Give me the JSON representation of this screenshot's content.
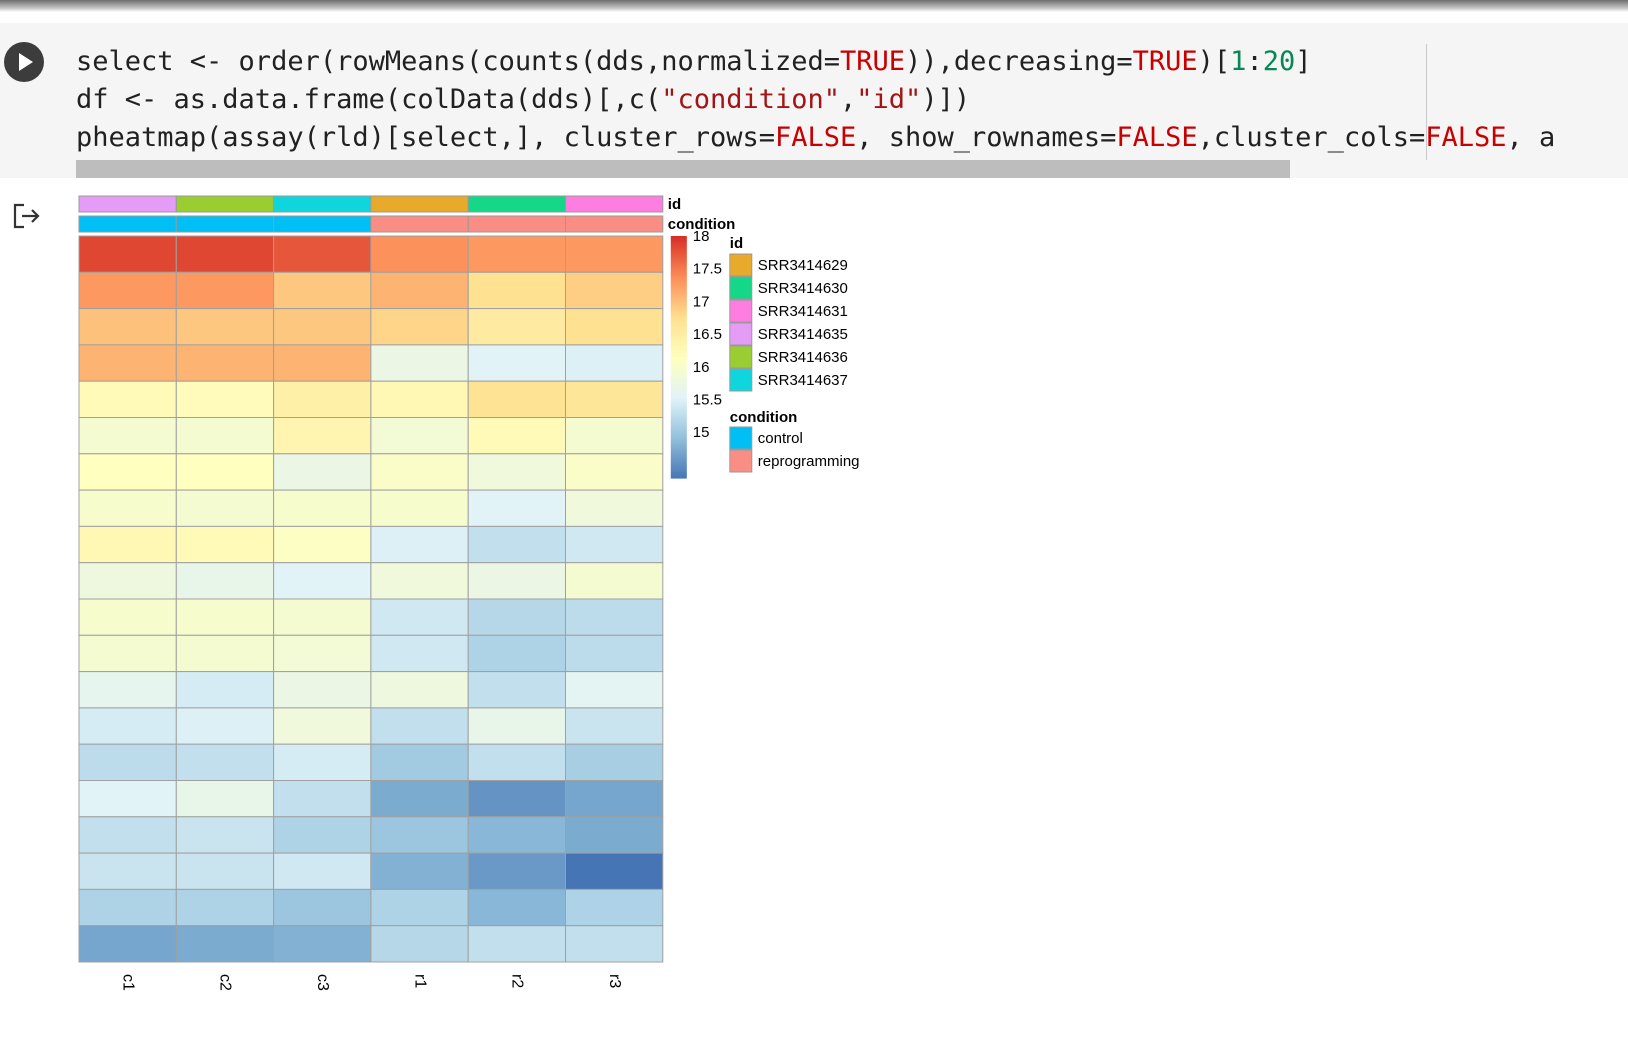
{
  "notebook": {
    "code_lines": [
      [
        {
          "t": "select <- order(rowMeans(counts(dds,normalized="
        },
        {
          "t": "TRUE",
          "c": "kw"
        },
        {
          "t": ")),decreasing="
        },
        {
          "t": "TRUE",
          "c": "kw"
        },
        {
          "t": ")["
        },
        {
          "t": "1",
          "c": "num"
        },
        {
          "t": ":"
        },
        {
          "t": "20",
          "c": "num"
        },
        {
          "t": "]"
        }
      ],
      [
        {
          "t": "df <- as.data.frame(colData(dds)[,c("
        },
        {
          "t": "\"condition\"",
          "c": "str"
        },
        {
          "t": ","
        },
        {
          "t": "\"id\"",
          "c": "str"
        },
        {
          "t": ")])"
        }
      ],
      [
        {
          "t": "pheatmap(assay(rld)[select,], cluster_rows="
        },
        {
          "t": "FALSE",
          "c": "kw"
        },
        {
          "t": ", show_rownames="
        },
        {
          "t": "FALSE",
          "c": "kw"
        },
        {
          "t": ",cluster_cols="
        },
        {
          "t": "FALSE",
          "c": "kw"
        },
        {
          "t": ", a"
        }
      ]
    ],
    "run_icon": "play-icon",
    "output_icon": "output-exit-icon"
  },
  "colors": {
    "cell_bg": "#f5f5f5",
    "keyword": "#c80000",
    "string": "#a31515",
    "number": "#098658"
  },
  "chart_data": {
    "type": "heatmap",
    "columns": [
      "c1",
      "c2",
      "c3",
      "r1",
      "r2",
      "r3"
    ],
    "values": [
      [
        17.85,
        17.85,
        17.75,
        17.35,
        17.3,
        17.3
      ],
      [
        17.3,
        17.3,
        16.95,
        17.1,
        16.75,
        16.9
      ],
      [
        17.0,
        16.95,
        16.95,
        16.85,
        16.55,
        16.75
      ],
      [
        17.1,
        17.1,
        17.1,
        15.75,
        15.55,
        15.5
      ],
      [
        16.25,
        16.2,
        16.45,
        16.3,
        16.7,
        16.65
      ],
      [
        15.95,
        15.95,
        16.35,
        15.9,
        16.25,
        15.95
      ],
      [
        16.15,
        16.15,
        15.75,
        16.05,
        15.85,
        16.05
      ],
      [
        16.0,
        15.95,
        16.0,
        16.0,
        15.55,
        15.85
      ],
      [
        16.3,
        16.25,
        16.1,
        15.5,
        15.3,
        15.4
      ],
      [
        15.8,
        15.7,
        15.55,
        15.85,
        15.75,
        15.95
      ],
      [
        16.0,
        16.0,
        15.95,
        15.4,
        15.2,
        15.25
      ],
      [
        15.95,
        15.95,
        15.9,
        15.4,
        15.15,
        15.25
      ],
      [
        15.65,
        15.45,
        15.75,
        15.8,
        15.3,
        15.6
      ],
      [
        15.45,
        15.5,
        15.85,
        15.3,
        15.7,
        15.35
      ],
      [
        15.25,
        15.3,
        15.45,
        15.05,
        15.3,
        15.1
      ],
      [
        15.55,
        15.7,
        15.3,
        14.75,
        14.55,
        14.7
      ],
      [
        15.3,
        15.35,
        15.15,
        15.0,
        14.85,
        14.75
      ],
      [
        15.35,
        15.35,
        15.4,
        14.8,
        14.6,
        14.3
      ],
      [
        15.15,
        15.15,
        15.0,
        15.15,
        14.85,
        15.15
      ],
      [
        14.7,
        14.75,
        14.8,
        15.2,
        15.3,
        15.3
      ]
    ],
    "color_scale": {
      "min": 14.3,
      "max": 18.0,
      "breaks": [
        "18",
        "17.5",
        "17",
        "16.5",
        "16",
        "15.5",
        "15"
      ],
      "break_values": [
        18,
        17.5,
        17,
        16.5,
        16,
        15.5,
        15
      ],
      "stops": [
        "#4575b4",
        "#91bfdb",
        "#e0f3f8",
        "#ffffbf",
        "#fee090",
        "#fc8d59",
        "#d73027"
      ]
    },
    "annotations": {
      "id": {
        "label": "id",
        "column_colors": [
          "#e49cf6",
          "#9acd32",
          "#0fd6dd",
          "#e8aa2b",
          "#14d888",
          "#fd7ee0"
        ]
      },
      "condition": {
        "label": "condition",
        "column_colors": [
          "#00bff4",
          "#00bff4",
          "#00bff4",
          "#fa8e84",
          "#fa8e84",
          "#fa8e84"
        ]
      }
    },
    "legend": {
      "id_title": "id",
      "id_entries": [
        {
          "label": "SRR3414629",
          "color": "#e8aa2b"
        },
        {
          "label": "SRR3414630",
          "color": "#14d888"
        },
        {
          "label": "SRR3414631",
          "color": "#fd7ee0"
        },
        {
          "label": "SRR3414635",
          "color": "#e49cf6"
        },
        {
          "label": "SRR3414636",
          "color": "#9acd32"
        },
        {
          "label": "SRR3414637",
          "color": "#0fd6dd"
        }
      ],
      "condition_title": "condition",
      "condition_entries": [
        {
          "label": "control",
          "color": "#00bff4"
        },
        {
          "label": "reprogramming",
          "color": "#fa8e84"
        }
      ]
    }
  }
}
